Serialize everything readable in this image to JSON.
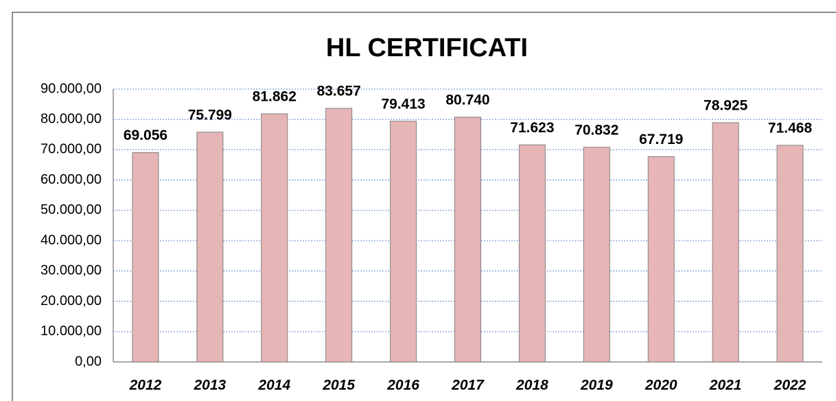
{
  "chart_data": {
    "type": "bar",
    "title": "HL CERTIFICATI",
    "categories": [
      "2012",
      "2013",
      "2014",
      "2015",
      "2016",
      "2017",
      "2018",
      "2019",
      "2020",
      "2021",
      "2022"
    ],
    "values": [
      69056,
      75799,
      81862,
      83657,
      79413,
      80740,
      71623,
      70832,
      67719,
      78925,
      71468
    ],
    "value_labels": [
      "69.056",
      "75.799",
      "81.862",
      "83.657",
      "79.413",
      "80.740",
      "71.623",
      "70.832",
      "67.719",
      "78.925",
      "71.468"
    ],
    "color": "#e6b5b5",
    "ylim": [
      0,
      90000
    ],
    "yticks": [
      {
        "value": 0,
        "label": "0,00"
      },
      {
        "value": 10000,
        "label": "10.000,00"
      },
      {
        "value": 20000,
        "label": "20.000,00"
      },
      {
        "value": 30000,
        "label": "30.000,00"
      },
      {
        "value": 40000,
        "label": "40.000,00"
      },
      {
        "value": 50000,
        "label": "50.000,00"
      },
      {
        "value": 60000,
        "label": "60.000,00"
      },
      {
        "value": 70000,
        "label": "70.000,00"
      },
      {
        "value": 80000,
        "label": "80.000,00"
      },
      {
        "value": 90000,
        "label": "90.000,00"
      }
    ],
    "grid": true
  }
}
